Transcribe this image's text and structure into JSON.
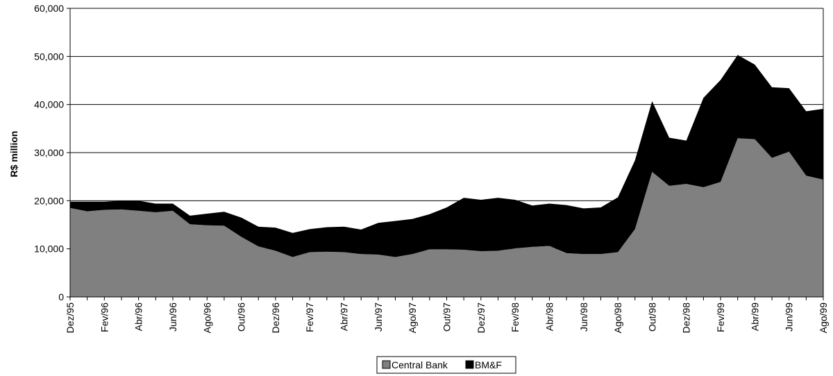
{
  "chart_data": {
    "type": "area",
    "stacked": true,
    "title": "",
    "xlabel": "",
    "ylabel": "R$ million",
    "ylim": [
      0,
      60000
    ],
    "yticks": [
      0,
      10000,
      20000,
      30000,
      40000,
      50000,
      60000
    ],
    "ytick_labels": [
      "0",
      "10,000",
      "20,000",
      "30,000",
      "40,000",
      "50,000",
      "60,000"
    ],
    "grid": true,
    "legend_position": "bottom",
    "x": [
      "Dez/95",
      "Jan/96",
      "Fev/96",
      "Mar/96",
      "Abr/96",
      "Mai/96",
      "Jun/96",
      "Jul/96",
      "Ago/96",
      "Set/96",
      "Out/96",
      "Nov/96",
      "Dez/96",
      "Jan/97",
      "Fev/97",
      "Mar/97",
      "Abr/97",
      "Mai/97",
      "Jun/97",
      "Jul/97",
      "Ago/97",
      "Set/97",
      "Out/97",
      "Nov/97",
      "Dez/97",
      "Jan/98",
      "Fev/98",
      "Mar/98",
      "Abr/98",
      "Mai/98",
      "Jun/98",
      "Jul/98",
      "Ago/98",
      "Set/98",
      "Out/98",
      "Nov/98",
      "Dez/98",
      "Jan/99",
      "Fev/99",
      "Mar/99",
      "Abr/99",
      "Mai/99",
      "Jun/99",
      "Jul/99",
      "Ago/99"
    ],
    "x_tick_labels": [
      "Dez/95",
      "Fev/96",
      "Abr/96",
      "Jun/96",
      "Ago/96",
      "Out/96",
      "Dez/96",
      "Fev/97",
      "Abr/97",
      "Jun/97",
      "Ago/97",
      "Out/97",
      "Dez/97",
      "Fev/98",
      "Abr/98",
      "Jun/98",
      "Ago/98",
      "Out/98",
      "Dez/98",
      "Fev/99",
      "Abr/99",
      "Jun/99",
      "Ago/99"
    ],
    "series": [
      {
        "name": "Central Bank",
        "color": "#808080",
        "values": [
          18500,
          17800,
          18100,
          18200,
          17900,
          17600,
          17900,
          15100,
          14900,
          14800,
          12500,
          10500,
          9600,
          8300,
          9300,
          9400,
          9300,
          8900,
          8800,
          8300,
          8900,
          9900,
          9900,
          9800,
          9500,
          9600,
          10100,
          10400,
          10600,
          9100,
          8900,
          8900,
          9300,
          14100,
          26000,
          23100,
          23500,
          22800,
          23900,
          33000,
          32800,
          28900,
          30200,
          25200,
          24400
        ]
      },
      {
        "name": "BM&F",
        "color": "#000000",
        "values": [
          1300,
          2000,
          1700,
          1800,
          2100,
          1800,
          1500,
          1800,
          2400,
          2900,
          4000,
          4100,
          4800,
          5000,
          4800,
          5100,
          5300,
          5100,
          6600,
          7500,
          7300,
          7300,
          8700,
          10800,
          10700,
          11000,
          10100,
          8600,
          8800,
          10000,
          9500,
          9700,
          11400,
          14300,
          14700,
          10000,
          9000,
          18600,
          21200,
          17300,
          15500,
          14700,
          13200,
          13400,
          14700
        ]
      }
    ]
  }
}
